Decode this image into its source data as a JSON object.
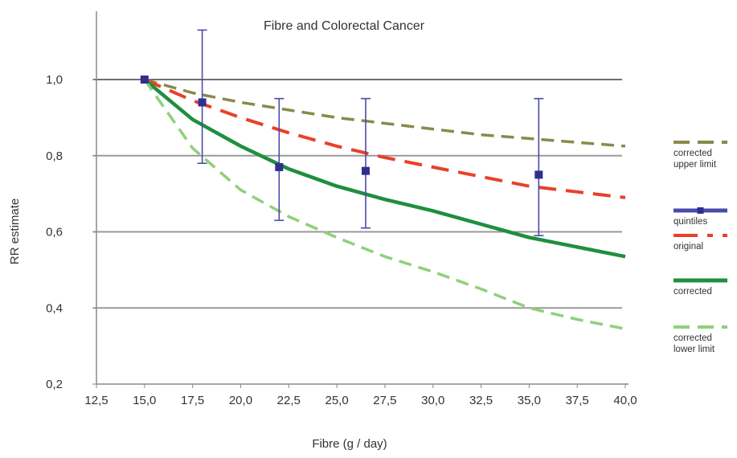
{
  "chart_data": {
    "type": "line",
    "title": "Fibre and Colorectal Cancer",
    "xlabel": "Fibre (g / day)",
    "ylabel": "RR estimate",
    "xlim": [
      12.5,
      40.0
    ],
    "ylim": [
      0.2,
      1.1
    ],
    "x_ticks": [
      "12,5",
      "15,0",
      "17,5",
      "20,0",
      "22,5",
      "25,0",
      "27,5",
      "30,0",
      "32,5",
      "35,0",
      "37,5",
      "40,0"
    ],
    "y_ticks": [
      "0,2",
      "0,4",
      "0,6",
      "0,8",
      "1,0"
    ],
    "grid": "horizontal",
    "legend_position": "right",
    "series": [
      {
        "name": "corrected upper limit",
        "style": "dashed",
        "color": "#8a8a4a",
        "x": [
          15.0,
          17.5,
          20.0,
          22.5,
          25.0,
          27.5,
          30.0,
          32.5,
          35.0,
          37.5,
          40.0
        ],
        "y": [
          1.0,
          0.965,
          0.94,
          0.92,
          0.9,
          0.885,
          0.87,
          0.855,
          0.845,
          0.835,
          0.825
        ],
        "legend_lines": [
          "corrected",
          "upper limit"
        ]
      },
      {
        "name": "quintiles",
        "style": "markers-with-error-bars",
        "color": "#4b4bab",
        "x": [
          15.0,
          18.0,
          22.0,
          26.5,
          35.5
        ],
        "y": [
          1.0,
          0.94,
          0.77,
          0.76,
          0.75
        ],
        "upper": [
          1.0,
          1.13,
          0.95,
          0.95,
          0.95
        ],
        "lower": [
          1.0,
          0.78,
          0.63,
          0.61,
          0.59
        ],
        "legend_lines": [
          "quintiles"
        ]
      },
      {
        "name": "original",
        "style": "long-dashed",
        "color": "#e8402a",
        "x": [
          15.0,
          17.5,
          20.0,
          22.5,
          25.0,
          27.5,
          30.0,
          32.5,
          35.0,
          37.5,
          40.0
        ],
        "y": [
          1.0,
          0.945,
          0.9,
          0.86,
          0.825,
          0.795,
          0.77,
          0.745,
          0.72,
          0.705,
          0.69
        ],
        "legend_lines": [
          "original"
        ]
      },
      {
        "name": "corrected",
        "style": "solid",
        "color": "#1e8f3e",
        "x": [
          15.0,
          17.5,
          20.0,
          22.5,
          25.0,
          27.5,
          30.0,
          32.5,
          35.0,
          37.5,
          40.0
        ],
        "y": [
          1.0,
          0.895,
          0.825,
          0.765,
          0.72,
          0.685,
          0.655,
          0.62,
          0.585,
          0.56,
          0.535
        ],
        "legend_lines": [
          "corrected"
        ]
      },
      {
        "name": "corrected lower limit",
        "style": "dashed",
        "color": "#8fd07a",
        "x": [
          15.0,
          17.5,
          20.0,
          22.5,
          25.0,
          27.5,
          30.0,
          32.5,
          35.0,
          37.5,
          40.0
        ],
        "y": [
          1.0,
          0.82,
          0.71,
          0.64,
          0.585,
          0.535,
          0.495,
          0.45,
          0.4,
          0.37,
          0.345
        ],
        "legend_lines": [
          "corrected",
          "lower limit"
        ]
      }
    ]
  }
}
